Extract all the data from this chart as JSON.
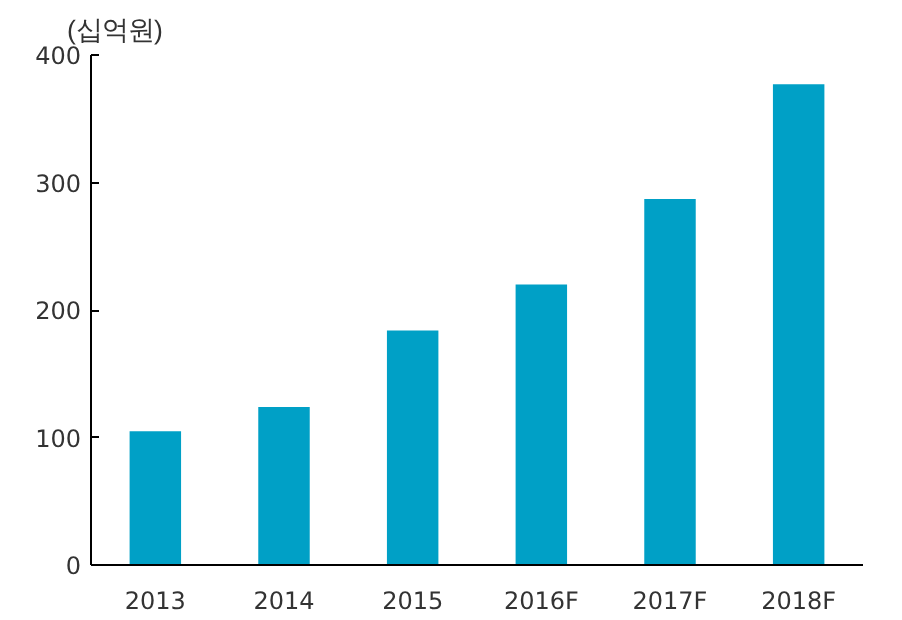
{
  "chart_data": {
    "type": "bar",
    "ylabel": "(십억원)",
    "categories": [
      "2013",
      "2014",
      "2015",
      "2016F",
      "2017F",
      "2018F"
    ],
    "values": [
      105,
      124,
      184,
      220,
      287,
      377
    ],
    "color": "#00a0c6",
    "ylim": [
      0,
      400
    ],
    "yticks": [
      0,
      100,
      200,
      300,
      400
    ],
    "grid": false
  }
}
